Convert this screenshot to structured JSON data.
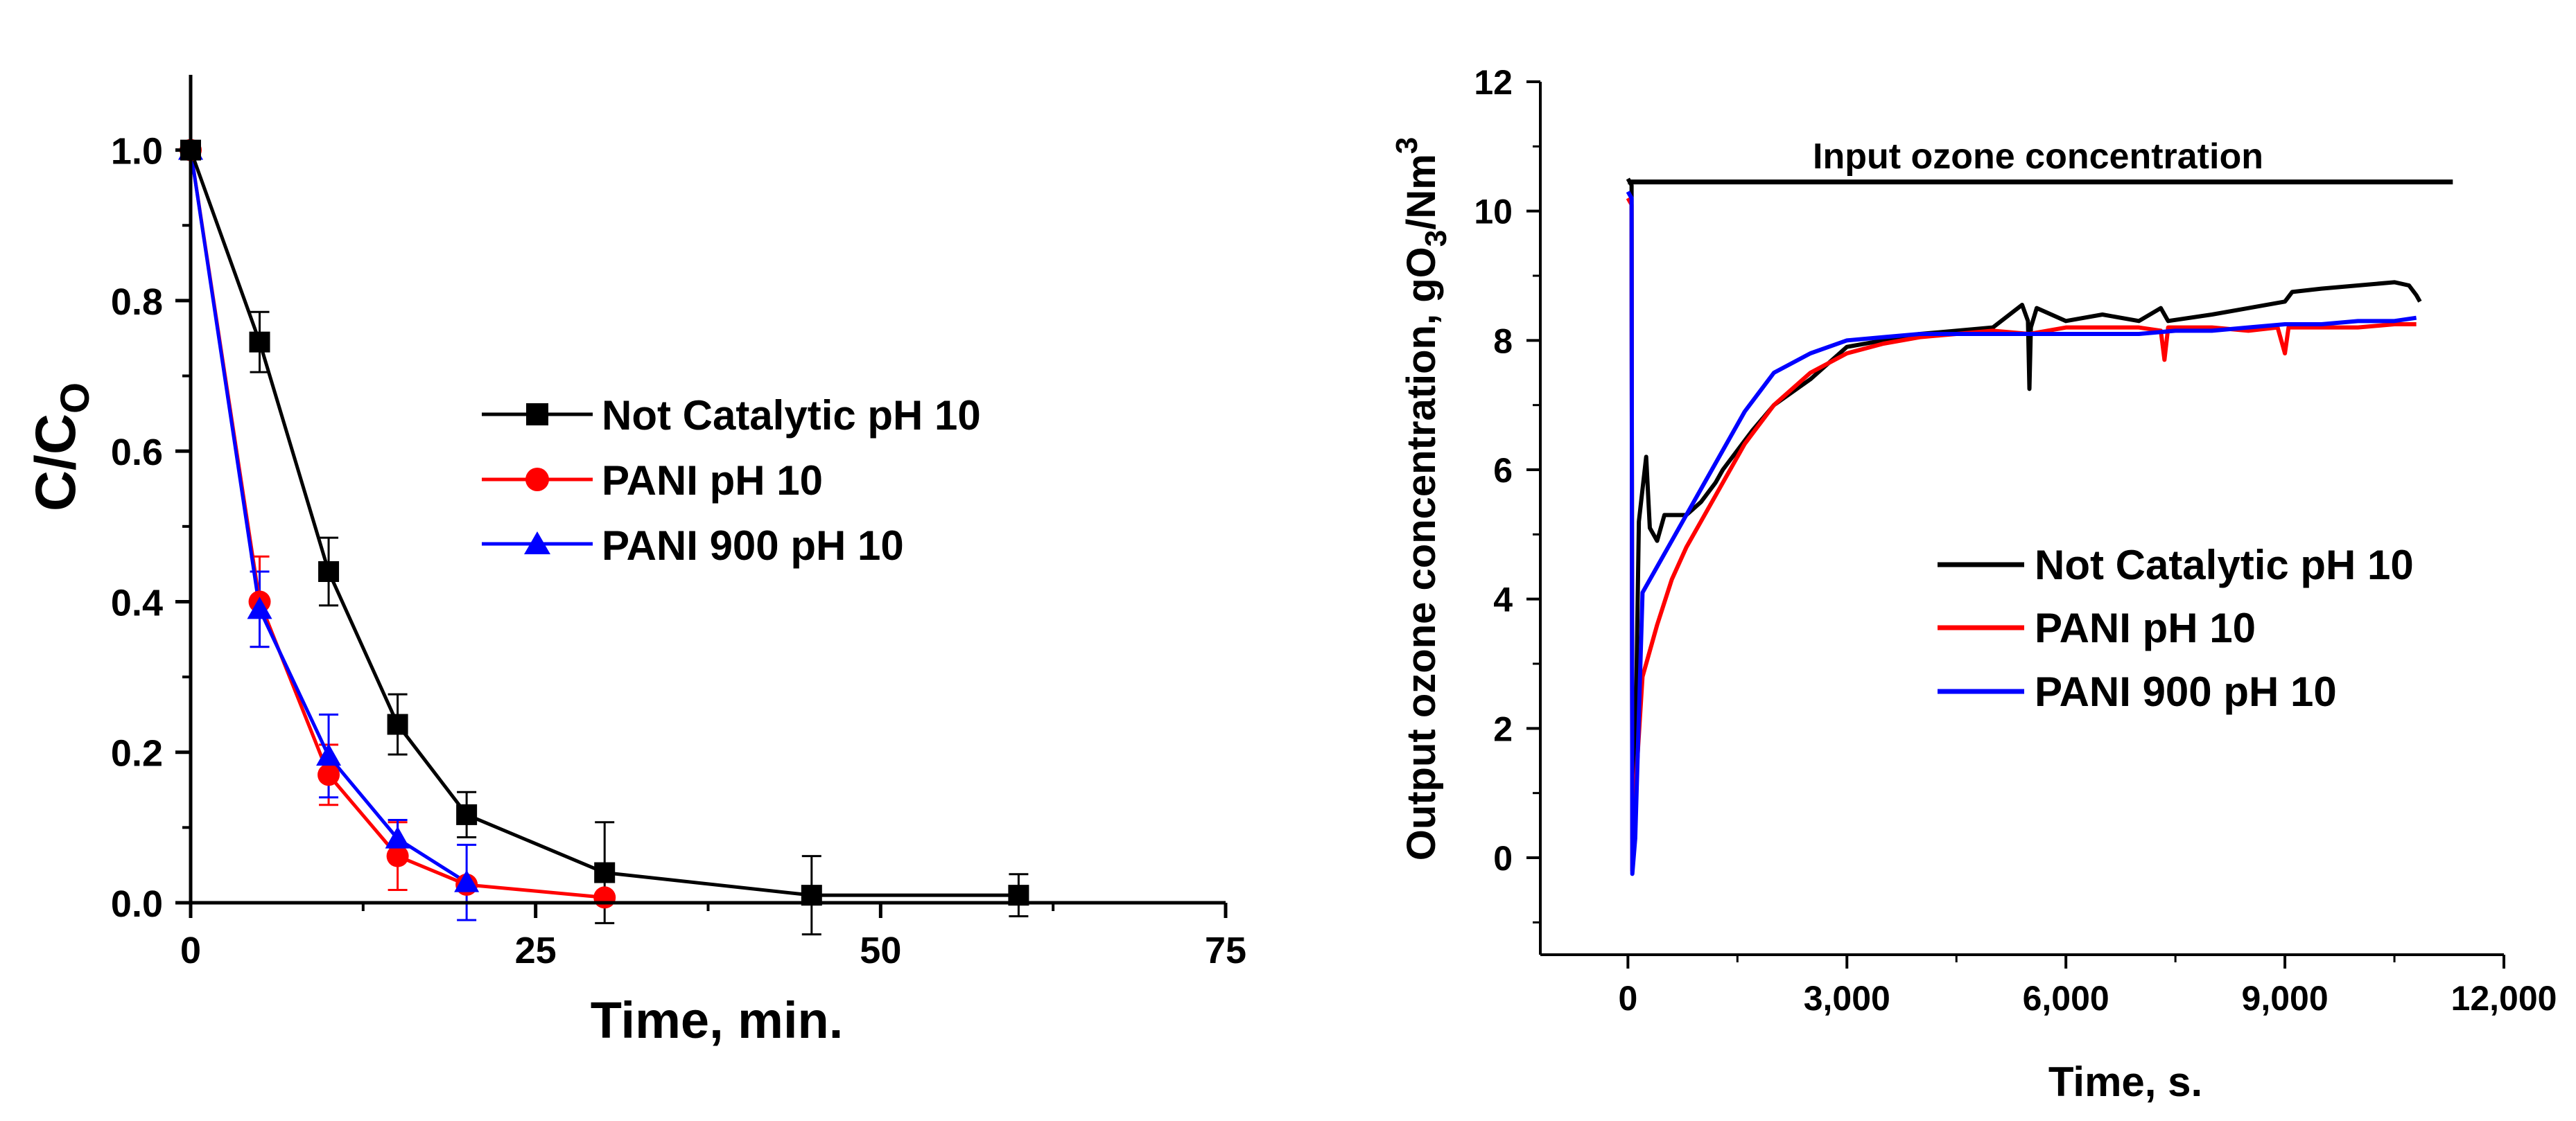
{
  "chart_data": [
    {
      "type": "line",
      "xlabel": "Time, min.",
      "ylabel_main": "C/C",
      "ylabel_sub": "O",
      "xlim": [
        0,
        75
      ],
      "ylim": [
        0,
        1.1
      ],
      "xticks": [
        0,
        25,
        50,
        75
      ],
      "xtick_labels": [
        "0",
        "25",
        "50",
        "75"
      ],
      "yticks": [
        0,
        0.2,
        0.4,
        0.6,
        0.8,
        1.0
      ],
      "ytick_labels": [
        "0.0",
        "0.2",
        "0.4",
        "0.6",
        "0.8",
        "1.0"
      ],
      "legend_position": "center-right",
      "series": [
        {
          "name": "Not Catalytic  pH 10",
          "color": "#000000",
          "marker": "square",
          "x": [
            0,
            5,
            10,
            15,
            20,
            30,
            45,
            60
          ],
          "y": [
            1.0,
            0.745,
            0.44,
            0.237,
            0.117,
            0.04,
            0.01,
            0.01
          ],
          "err": [
            0.0,
            0.04,
            0.045,
            0.04,
            0.03,
            0.067,
            0.052,
            0.028
          ]
        },
        {
          "name": "PANI pH 10",
          "color": "#ff0000",
          "marker": "circle",
          "x": [
            0,
            5,
            10,
            15,
            20,
            30
          ],
          "y": [
            1.0,
            0.4,
            0.17,
            0.062,
            0.024,
            0.007
          ],
          "err": [
            0.0,
            0.06,
            0.04,
            0.045,
            0.0,
            0.0
          ]
        },
        {
          "name": "PANI 900 pH 10",
          "color": "#0000ff",
          "marker": "triangle",
          "x": [
            0,
            5,
            10,
            15,
            20
          ],
          "y": [
            1.0,
            0.39,
            0.195,
            0.085,
            0.027
          ],
          "err": [
            0.0,
            0.05,
            0.055,
            0.025,
            0.05
          ]
        }
      ]
    },
    {
      "type": "line",
      "xlabel": "Time, s.",
      "ylabel": "Output ozone concentration, gO3/Nm3",
      "ylabel_parts": [
        "Output ozone concentration, gO",
        "3",
        "/Nm",
        "3"
      ],
      "xlim": [
        -1200,
        12000
      ],
      "ylim": [
        -1.5,
        12
      ],
      "xticks": [
        0,
        3000,
        6000,
        9000,
        12000
      ],
      "xtick_labels": [
        "0",
        "3,000",
        "6,000",
        "9,000",
        "12,000"
      ],
      "yticks": [
        0,
        2,
        4,
        6,
        8,
        10,
        12
      ],
      "ytick_labels": [
        "0",
        "2",
        "4",
        "6",
        "8",
        "10",
        "12"
      ],
      "annotation": {
        "text": "Input ozone concentration",
        "x_start": 0,
        "x_end": 11300,
        "y": 10.45
      },
      "legend_position": "center-right",
      "series": [
        {
          "name": "Not Catalytic pH 10",
          "color": "#000000",
          "x": [
            0,
            50,
            60,
            100,
            150,
            250,
            300,
            400,
            500,
            800,
            1000,
            1200,
            1300,
            1500,
            1700,
            2000,
            2500,
            2700,
            3000,
            3500,
            4000,
            4500,
            5000,
            5400,
            5480,
            5500,
            5520,
            5600,
            6000,
            6500,
            7000,
            7300,
            7400,
            8000,
            8500,
            9000,
            9100,
            9500,
            10000,
            10500,
            10700,
            10800,
            10850
          ],
          "y": [
            10.5,
            10.4,
            0.3,
            1.5,
            5.2,
            6.2,
            5.1,
            4.9,
            5.3,
            5.3,
            5.5,
            5.8,
            6.0,
            6.3,
            6.6,
            7.0,
            7.4,
            7.6,
            7.9,
            8.0,
            8.1,
            8.15,
            8.2,
            8.55,
            8.3,
            7.25,
            8.2,
            8.5,
            8.3,
            8.4,
            8.3,
            8.5,
            8.3,
            8.4,
            8.5,
            8.6,
            8.75,
            8.8,
            8.85,
            8.9,
            8.85,
            8.7,
            8.6
          ]
        },
        {
          "name": "PANI  pH 10",
          "color": "#ff0000",
          "x": [
            0,
            50,
            60,
            100,
            200,
            400,
            600,
            800,
            1000,
            1300,
            1600,
            2000,
            2500,
            3000,
            3500,
            4000,
            4500,
            5000,
            5500,
            6000,
            6500,
            7000,
            7300,
            7350,
            7400,
            8000,
            8500,
            8900,
            9000,
            9050,
            9500,
            10000,
            10500,
            10800
          ],
          "y": [
            10.2,
            10.1,
            -0.2,
            1.0,
            2.8,
            3.6,
            4.3,
            4.8,
            5.2,
            5.8,
            6.4,
            7.0,
            7.5,
            7.8,
            7.95,
            8.05,
            8.1,
            8.15,
            8.1,
            8.2,
            8.2,
            8.2,
            8.15,
            7.7,
            8.2,
            8.2,
            8.15,
            8.2,
            7.8,
            8.2,
            8.2,
            8.2,
            8.25,
            8.25
          ]
        },
        {
          "name": "PANI 900 pH 10",
          "color": "#0000ff",
          "x": [
            0,
            50,
            60,
            100,
            200,
            400,
            600,
            800,
            1000,
            1300,
            1600,
            2000,
            2500,
            3000,
            3500,
            4000,
            4500,
            5000,
            5500,
            6000,
            6500,
            7000,
            7500,
            8000,
            8500,
            9000,
            9500,
            10000,
            10500,
            10800
          ],
          "y": [
            10.3,
            10.2,
            -0.25,
            0.3,
            4.1,
            4.5,
            4.9,
            5.3,
            5.7,
            6.3,
            6.9,
            7.5,
            7.8,
            8.0,
            8.05,
            8.1,
            8.1,
            8.1,
            8.1,
            8.1,
            8.1,
            8.1,
            8.15,
            8.15,
            8.2,
            8.25,
            8.25,
            8.3,
            8.3,
            8.35
          ]
        }
      ]
    }
  ]
}
